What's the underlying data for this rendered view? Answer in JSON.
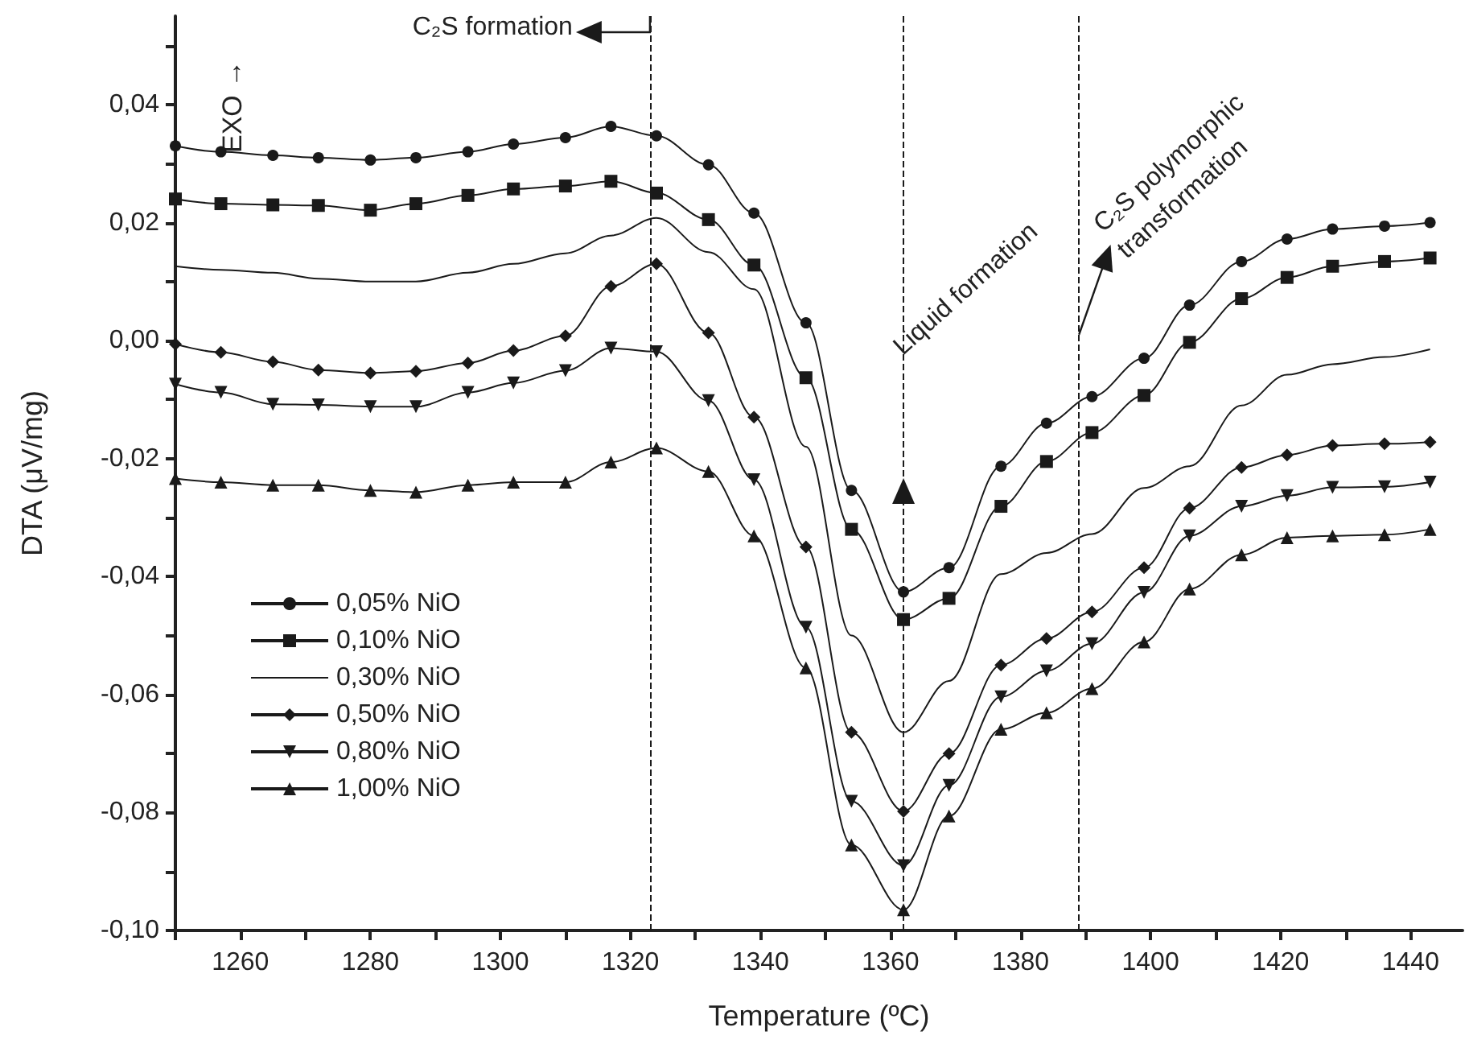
{
  "chart_data": {
    "type": "line",
    "xlabel": "Temperature (ºC)",
    "ylabel": "DTA (μV/mg)",
    "x": [
      1250,
      1257,
      1265,
      1272,
      1280,
      1287,
      1295,
      1302,
      1310,
      1317,
      1324,
      1332,
      1339,
      1347,
      1354,
      1362,
      1369,
      1377,
      1384,
      1391,
      1399,
      1406,
      1414,
      1421,
      1428,
      1436,
      1443
    ],
    "series": [
      {
        "name": "0,05% NiO",
        "color": "#1a1a1a",
        "marker": "circle",
        "values": [
          0.033,
          0.032,
          0.0314,
          0.031,
          0.0306,
          0.031,
          0.032,
          0.0333,
          0.0344,
          0.0363,
          0.0347,
          0.0298,
          0.0216,
          0.003,
          -0.0254,
          -0.0426,
          -0.0385,
          -0.0213,
          -0.014,
          -0.0095,
          -0.003,
          0.006,
          0.0134,
          0.0172,
          0.0189,
          0.0194,
          0.02
        ]
      },
      {
        "name": "0,10% NiO",
        "color": "#1a1a1a",
        "marker": "square",
        "values": [
          0.024,
          0.0232,
          0.023,
          0.0229,
          0.0221,
          0.0232,
          0.0246,
          0.0257,
          0.0262,
          0.027,
          0.025,
          0.0205,
          0.0128,
          -0.0063,
          -0.032,
          -0.0473,
          -0.0437,
          -0.0281,
          -0.0205,
          -0.0156,
          -0.0093,
          -0.0003,
          0.0071,
          0.0107,
          0.0126,
          0.0134,
          0.014
        ]
      },
      {
        "name": "0,30% NiO",
        "color": "#1a1a1a",
        "marker": "none",
        "values": [
          0.0126,
          0.012,
          0.0115,
          0.0105,
          0.01,
          0.01,
          0.0115,
          0.013,
          0.0148,
          0.0178,
          0.0208,
          0.015,
          0.0087,
          -0.018,
          -0.05,
          -0.0664,
          -0.0577,
          -0.0396,
          -0.036,
          -0.0328,
          -0.025,
          -0.0213,
          -0.011,
          -0.0058,
          -0.004,
          -0.0028,
          -0.0015
        ]
      },
      {
        "name": "0,50% NiO",
        "color": "#1a1a1a",
        "marker": "diamond",
        "values": [
          -0.0006,
          -0.002,
          -0.0036,
          -0.005,
          -0.0055,
          -0.0052,
          -0.0038,
          -0.0017,
          0.0008,
          0.0092,
          0.013,
          0.0013,
          -0.013,
          -0.035,
          -0.0664,
          -0.0798,
          -0.07,
          -0.055,
          -0.0505,
          -0.046,
          -0.0385,
          -0.0284,
          -0.0215,
          -0.0194,
          -0.0178,
          -0.0175,
          -0.0172
        ]
      },
      {
        "name": "0,80% NiO",
        "color": "#1a1a1a",
        "marker": "triangle-down",
        "values": [
          -0.0074,
          -0.0088,
          -0.0108,
          -0.0109,
          -0.0112,
          -0.0112,
          -0.0088,
          -0.0072,
          -0.0051,
          -0.0013,
          -0.0019,
          -0.0102,
          -0.0236,
          -0.0486,
          -0.0781,
          -0.089,
          -0.0754,
          -0.0604,
          -0.056,
          -0.0514,
          -0.0427,
          -0.0331,
          -0.0281,
          -0.0263,
          -0.0249,
          -0.0248,
          -0.024
        ]
      },
      {
        "name": "1,00% NiO",
        "color": "#1a1a1a",
        "marker": "triangle",
        "values": [
          -0.0234,
          -0.024,
          -0.0245,
          -0.0245,
          -0.0254,
          -0.0257,
          -0.0245,
          -0.024,
          -0.024,
          -0.0206,
          -0.0182,
          -0.0222,
          -0.0331,
          -0.0555,
          -0.0855,
          -0.0965,
          -0.0806,
          -0.0659,
          -0.0631,
          -0.059,
          -0.0511,
          -0.0421,
          -0.0363,
          -0.0334,
          -0.0331,
          -0.0329,
          -0.032
        ]
      }
    ],
    "xlim": [
      1250,
      1448
    ],
    "xticks": [
      {
        "value": 1250,
        "label": null
      },
      1260,
      {
        "value": 1270,
        "label": null
      },
      1280,
      {
        "value": 1290,
        "label": null
      },
      1300,
      {
        "value": 1310,
        "label": null
      },
      1320,
      {
        "value": 1330,
        "label": null
      },
      1340,
      {
        "value": 1350,
        "label": null
      },
      1360,
      {
        "value": 1370,
        "label": null
      },
      1380,
      {
        "value": 1390,
        "label": null
      },
      1400,
      {
        "value": 1410,
        "label": null
      },
      1420,
      {
        "value": 1430,
        "label": null
      },
      1440
    ],
    "ylim": [
      -0.1,
      0.055
    ],
    "yticks": [
      {
        "value": -0.1,
        "label": "-0,10"
      },
      {
        "value": -0.09,
        "label": null
      },
      {
        "value": -0.08,
        "label": "-0,08"
      },
      {
        "value": -0.07,
        "label": null
      },
      {
        "value": -0.06,
        "label": "-0,06"
      },
      {
        "value": -0.05,
        "label": null
      },
      {
        "value": -0.04,
        "label": "-0,04"
      },
      {
        "value": -0.03,
        "label": null
      },
      {
        "value": -0.02,
        "label": "-0,02"
      },
      {
        "value": -0.01,
        "label": null
      },
      {
        "value": 0,
        "label": "0,00"
      },
      {
        "value": 0.01,
        "label": null
      },
      {
        "value": 0.02,
        "label": "0,02"
      },
      {
        "value": 0.03,
        "label": null
      },
      {
        "value": 0.04,
        "label": "0,04"
      },
      {
        "value": 0.05,
        "label": null
      }
    ],
    "ref_lines": [
      {
        "axis": "x",
        "value": 1323,
        "label": "C₂S formation",
        "line_style": "dashed",
        "color": "#1a1a1a"
      },
      {
        "axis": "x",
        "value": 1362,
        "label": "Liquid formation",
        "line_style": "dashed",
        "color": "#1a1a1a"
      },
      {
        "axis": "x",
        "value": 1389,
        "label": "C₂S polymorphic\ntransformation",
        "line_style": "dashed",
        "color": "#1a1a1a"
      }
    ],
    "annotations": [
      "EXO →"
    ],
    "grid": false,
    "legend": "left",
    "line_style": "solid"
  }
}
